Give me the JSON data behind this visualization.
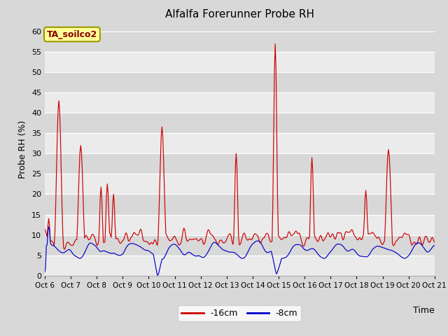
{
  "title": "Alfalfa Forerunner Probe RH",
  "xlabel": "Time",
  "ylabel": "Probe RH (%)",
  "ylim": [
    0,
    62
  ],
  "yticks": [
    0,
    5,
    10,
    15,
    20,
    25,
    30,
    35,
    40,
    45,
    50,
    55,
    60
  ],
  "bg_light": "#ebebeb",
  "bg_dark": "#d8d8d8",
  "line1_color": "#cc0000",
  "line2_color": "#0000cc",
  "line1_label": "-16cm",
  "line2_label": "-8cm",
  "legend_text": "TA_soilco2",
  "legend_bg": "#ffff99",
  "legend_border": "#999900",
  "n_points": 500,
  "x_start": 6.0,
  "x_end": 21.0,
  "xtick_positions": [
    6,
    7,
    8,
    9,
    10,
    11,
    12,
    13,
    14,
    15,
    16,
    17,
    18,
    19,
    20,
    21
  ],
  "xtick_labels": [
    "Oct 6",
    "Oct 7",
    "Oct 8",
    "Oct 9",
    "Oct 10",
    "Oct 11",
    "Oct 12",
    "Oct 13",
    "Oct 14",
    "Oct 15",
    "Oct 16",
    "Oct 17",
    "Oct 18",
    "Oct 19",
    "Oct 20",
    "Oct 21"
  ]
}
